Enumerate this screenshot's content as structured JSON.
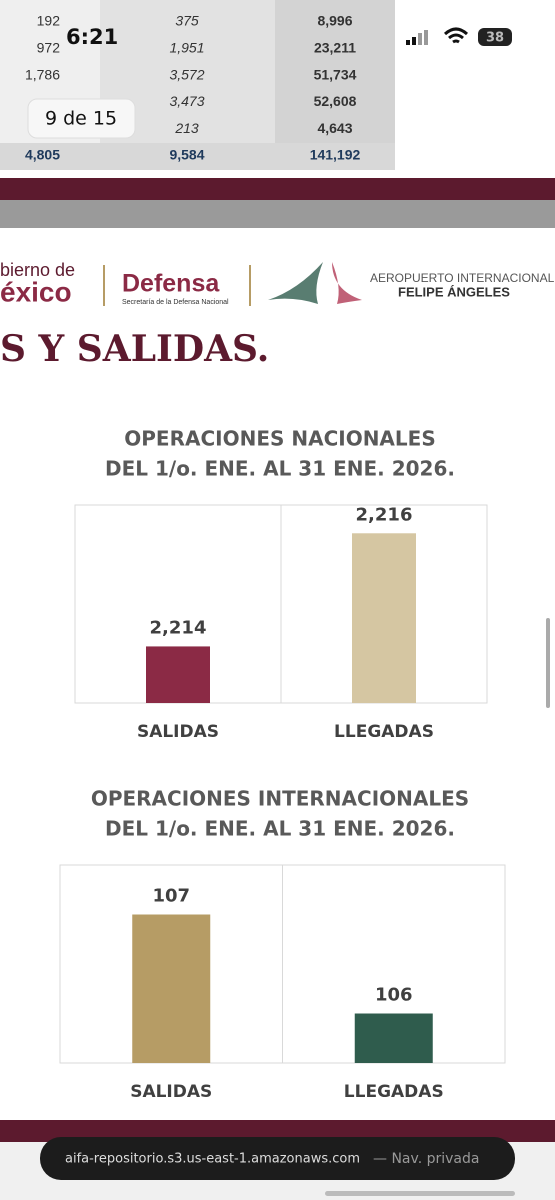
{
  "status_bar": {
    "time": "6:21",
    "battery": "38"
  },
  "page_indicator": "9 de 15",
  "table": {
    "rows": [
      [
        "192",
        "375",
        "8,996"
      ],
      [
        "972",
        "1,951",
        "23,211"
      ],
      [
        "1,786",
        "3,572",
        "51,734"
      ],
      [
        null,
        "3,473",
        "52,608"
      ],
      [
        null,
        "213",
        "4,643"
      ],
      [
        "4,805",
        "9,584",
        "141,192"
      ]
    ]
  },
  "header": {
    "gobierno_line1": "bierno de",
    "gobierno_line2": "éxico",
    "defensa": "Defensa",
    "defensa_sub": "Secretaría de la Defensa Nacional",
    "aifa_line1": "AEROPUERTO INTERNACIONAL",
    "aifa_line2": "FELIPE ÁNGELES"
  },
  "heading": "S Y SALIDAS.",
  "chart_data": [
    {
      "type": "bar",
      "title": [
        "OPERACIONES NACIONALES",
        "DEL 1/o. ENE. AL 31 ENE. 2026."
      ],
      "categories": [
        "SALIDAS",
        "LLEGADAS"
      ],
      "values": [
        2214,
        2216
      ],
      "value_labels": [
        "2,214",
        "2,216"
      ],
      "colors": [
        "#8b2a45",
        "#d5c6a2"
      ],
      "ylim": [
        2213,
        2216.5
      ]
    },
    {
      "type": "bar",
      "title": [
        "OPERACIONES INTERNACIONALES",
        "DEL  1/o. ENE. AL 31 ENE. 2026."
      ],
      "categories": [
        "SALIDAS",
        "LLEGADAS"
      ],
      "values": [
        107,
        106
      ],
      "colors": [
        "#b69c65",
        "#2f5c4d"
      ],
      "ylim": [
        105.5,
        107.5
      ]
    }
  ],
  "url_bar": {
    "url": "aifa-repositorio.s3.us-east-1.amazonaws.com",
    "mode": "— Nav. privada"
  }
}
